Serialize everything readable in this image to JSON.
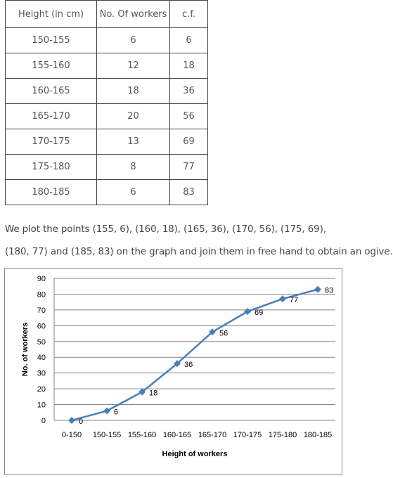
{
  "table": {
    "headers": [
      "Height (in cm)",
      "No. Of workers",
      "c.f."
    ],
    "rows": [
      [
        "150-155",
        "6",
        "6"
      ],
      [
        "155-160",
        "12",
        "18"
      ],
      [
        "160-165",
        "18",
        "36"
      ],
      [
        "165-170",
        "20",
        "56"
      ],
      [
        "170-175",
        "13",
        "69"
      ],
      [
        "175-180",
        "8",
        "77"
      ],
      [
        "180-185",
        "6",
        "83"
      ]
    ]
  },
  "text": {
    "line1": "We plot the points (155, 6), (160, 18), (165, 36), (170, 56), (175, 69),",
    "line2": "(180, 77) and (185, 83) on the graph and join them in free hand to obtain an ogive."
  },
  "chart_data": {
    "type": "line",
    "categories": [
      "0-150",
      "150-155",
      "155-160",
      "160-165",
      "165-170",
      "170-175",
      "175-180",
      "180-185"
    ],
    "series": [
      {
        "values": [
          0,
          6,
          18,
          36,
          56,
          69,
          77,
          83
        ]
      }
    ],
    "xlabel": "Height of workers",
    "ylabel": "No. of workers",
    "ylim": [
      0,
      90
    ],
    "yticks": [
      0,
      10,
      20,
      30,
      40,
      50,
      60,
      70,
      80,
      90
    ],
    "grid": true,
    "line_color": "#4a7ebb",
    "grid_color": "#868686",
    "data_labels": [
      "0",
      "6",
      "18",
      "36",
      "56",
      "69",
      "77",
      "83"
    ]
  }
}
